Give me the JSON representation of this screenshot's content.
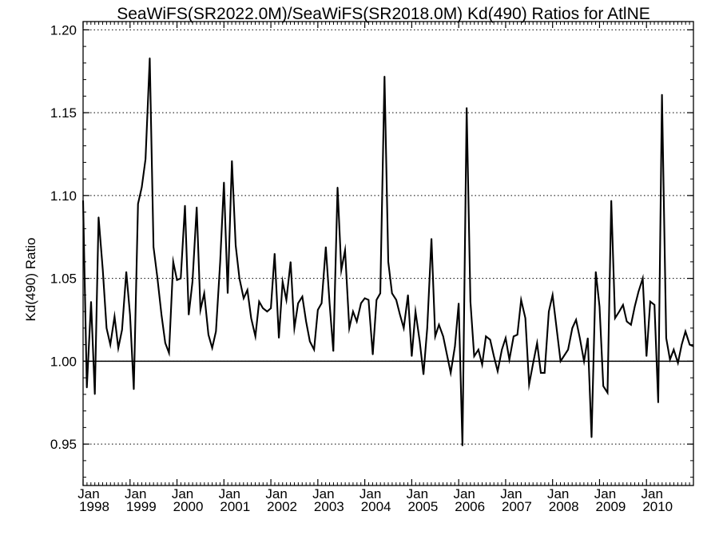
{
  "chart_data": {
    "type": "line",
    "title": "SeaWiFS(SR2022.0M)/SeaWiFS(SR2018.0M)  Kd(490) Ratios for AtlNE",
    "ylabel": "Kd(490) Ratio",
    "xlabel": "",
    "ylim": [
      0.925,
      1.205
    ],
    "xlim": [
      1998.0,
      2011.0
    ],
    "grid": "dotted horizontal at y ticks",
    "reference_line": 1.0,
    "y_ticks": [
      0.95,
      1.0,
      1.05,
      1.1,
      1.15,
      1.2
    ],
    "y_tick_labels": [
      "0.95",
      "1.00",
      "1.05",
      "1.10",
      "1.15",
      "1.20"
    ],
    "x_ticks": [
      {
        "month": "Jan",
        "year": "1998"
      },
      {
        "month": "Jan",
        "year": "1999"
      },
      {
        "month": "Jan",
        "year": "2000"
      },
      {
        "month": "Jan",
        "year": "2001"
      },
      {
        "month": "Jan",
        "year": "2002"
      },
      {
        "month": "Jan",
        "year": "2003"
      },
      {
        "month": "Jan",
        "year": "2004"
      },
      {
        "month": "Jan",
        "year": "2005"
      },
      {
        "month": "Jan",
        "year": "2006"
      },
      {
        "month": "Jan",
        "year": "2007"
      },
      {
        "month": "Jan",
        "year": "2008"
      },
      {
        "month": "Jan",
        "year": "2009"
      },
      {
        "month": "Jan",
        "year": "2010"
      }
    ],
    "series": [
      {
        "x": [
          1998.0,
          1998.08,
          1998.17,
          1998.25,
          1998.33,
          1998.42,
          1998.5,
          1998.58,
          1998.67,
          1998.75,
          1998.83,
          1998.92,
          1999.0,
          1999.08,
          1999.17,
          1999.25,
          1999.33,
          1999.42,
          1999.5,
          1999.58,
          1999.67,
          1999.75,
          1999.83,
          1999.92,
          2000.0,
          2000.08,
          2000.17,
          2000.25,
          2000.33,
          2000.42,
          2000.5,
          2000.58,
          2000.67,
          2000.75,
          2000.83,
          2000.92,
          2001.0,
          2001.08,
          2001.17,
          2001.25,
          2001.33,
          2001.42,
          2001.5,
          2001.58,
          2001.67,
          2001.75,
          2001.83,
          2001.92,
          2002.0,
          2002.08,
          2002.17,
          2002.25,
          2002.33,
          2002.42,
          2002.5,
          2002.58,
          2002.67,
          2002.75,
          2002.83,
          2002.92,
          2003.0,
          2003.08,
          2003.17,
          2003.25,
          2003.33,
          2003.42,
          2003.5,
          2003.58,
          2003.67,
          2003.75,
          2003.83,
          2003.92,
          2004.0,
          2004.08,
          2004.17,
          2004.25,
          2004.33,
          2004.42,
          2004.5,
          2004.58,
          2004.67,
          2004.75,
          2004.83,
          2004.92,
          2005.0,
          2005.08,
          2005.17,
          2005.25,
          2005.33,
          2005.42,
          2005.5,
          2005.58,
          2005.67,
          2005.75,
          2005.83,
          2005.92,
          2006.0,
          2006.08,
          2006.17,
          2006.25,
          2006.33,
          2006.42,
          2006.5,
          2006.58,
          2006.67,
          2006.75,
          2006.83,
          2006.92,
          2007.0,
          2007.08,
          2007.17,
          2007.25,
          2007.33,
          2007.42,
          2007.5,
          2007.58,
          2007.67,
          2007.75,
          2007.83,
          2007.92,
          2008.0,
          2008.17,
          2008.33,
          2008.42,
          2008.5,
          2008.58,
          2008.67,
          2008.75,
          2008.83,
          2008.92,
          2009.0,
          2009.08,
          2009.17,
          2009.25,
          2009.33,
          2009.42,
          2009.5,
          2009.58,
          2009.67,
          2009.75,
          2009.83,
          2009.92,
          2010.0,
          2010.08,
          2010.17,
          2010.25,
          2010.33,
          2010.42,
          2010.5,
          2010.58,
          2010.67,
          2010.75,
          2010.83,
          2010.92,
          2011.0
        ],
        "values": [
          1.097,
          0.984,
          1.036,
          0.98,
          1.087,
          1.055,
          1.02,
          1.01,
          1.027,
          1.008,
          1.019,
          1.054,
          1.028,
          0.983,
          1.095,
          1.105,
          1.122,
          1.183,
          1.069,
          1.051,
          1.028,
          1.011,
          1.005,
          1.06,
          1.049,
          1.05,
          1.094,
          1.028,
          1.048,
          1.093,
          1.031,
          1.041,
          1.016,
          1.008,
          1.018,
          1.06,
          1.108,
          1.041,
          1.121,
          1.07,
          1.05,
          1.038,
          1.043,
          1.026,
          1.015,
          1.036,
          1.032,
          1.03,
          1.032,
          1.065,
          1.014,
          1.048,
          1.037,
          1.06,
          1.02,
          1.035,
          1.039,
          1.024,
          1.012,
          1.007,
          1.031,
          1.035,
          1.069,
          1.035,
          1.006,
          1.105,
          1.055,
          1.067,
          1.02,
          1.03,
          1.024,
          1.035,
          1.038,
          1.037,
          1.004,
          1.037,
          1.041,
          1.172,
          1.06,
          1.041,
          1.037,
          1.028,
          1.02,
          1.04,
          1.003,
          1.03,
          1.012,
          0.992,
          1.02,
          1.074,
          1.015,
          1.022,
          1.015,
          1.004,
          0.993,
          1.009,
          1.035,
          0.949,
          1.153,
          1.036,
          1.003,
          1.007,
          0.998,
          1.015,
          1.013,
          1.003,
          0.994,
          1.007,
          1.014,
          1.001,
          1.015,
          1.016,
          1.037,
          1.026,
          0.986,
          0.998,
          1.011,
          0.993,
          0.993,
          1.03,
          1.04,
          1.0,
          1.007,
          1.02,
          1.025,
          1.014,
          1.0,
          1.014,
          0.954,
          1.054,
          1.033,
          0.985,
          0.981,
          1.097,
          1.026,
          1.03,
          1.034,
          1.024,
          1.022,
          1.033,
          1.042,
          1.05,
          1.003,
          1.036,
          1.034,
          0.975,
          1.161,
          1.014,
          1.001,
          1.007,
          0.999,
          1.01,
          1.018,
          1.01,
          1.009
        ]
      }
    ]
  }
}
